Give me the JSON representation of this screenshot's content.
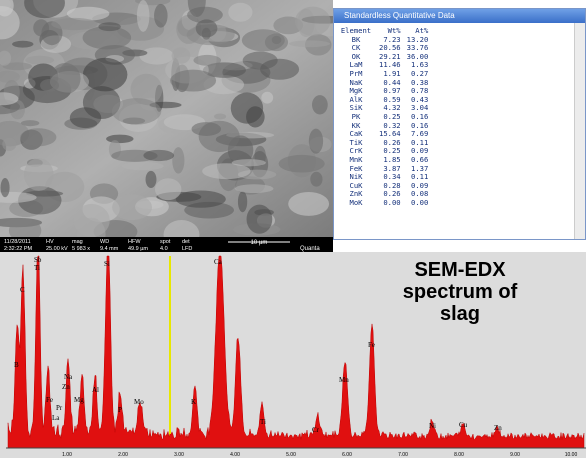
{
  "micrograph": {
    "info": [
      [
        "11/28/2011",
        "2:32:22 PM"
      ],
      [
        "HV",
        "25.00 kV"
      ],
      [
        "mag",
        "5 983 x"
      ],
      [
        "WD",
        "9.4 mm"
      ],
      [
        "HFW",
        "49.9 µm"
      ],
      [
        "spot",
        "4.0"
      ],
      [
        "det",
        "LFD"
      ]
    ],
    "scale_bar": "10 µm",
    "instrument": "Quanta"
  },
  "data_window": {
    "title": "Standardless Quantitative Data",
    "header": [
      "Element",
      "Wt%",
      "At%"
    ],
    "rows": [
      [
        "BK",
        "7.23",
        "13.20"
      ],
      [
        "CK",
        "20.56",
        "33.76"
      ],
      [
        "OK",
        "29.21",
        "36.00"
      ],
      [
        "LaM",
        "11.46",
        "1.63"
      ],
      [
        "PrM",
        "1.91",
        "0.27"
      ],
      [
        "NaK",
        "0.44",
        "0.38"
      ],
      [
        "MgK",
        "0.97",
        "0.78"
      ],
      [
        "AlK",
        "0.59",
        "0.43"
      ],
      [
        "SiK",
        "4.32",
        "3.04"
      ],
      [
        "PK",
        "0.25",
        "0.16"
      ],
      [
        "KK",
        "0.32",
        "0.16"
      ],
      [
        "CaK",
        "15.64",
        "7.69"
      ],
      [
        "TiK",
        "0.26",
        "0.11"
      ],
      [
        "CrK",
        "0.25",
        "0.09"
      ],
      [
        "MnK",
        "1.85",
        "0.66"
      ],
      [
        "FeK",
        "3.87",
        "1.37"
      ],
      [
        "NiK",
        "0.34",
        "0.11"
      ],
      [
        "CuK",
        "0.28",
        "0.09"
      ],
      [
        "ZnK",
        "0.26",
        "0.08"
      ],
      [
        "MoK",
        "0.00",
        "0.00"
      ]
    ]
  },
  "spectrum": {
    "title_lines": [
      "SEM-EDX",
      "spectrum of",
      "slag"
    ],
    "peak_labels": [
      "B",
      "C",
      "Sb",
      "Ti",
      "Na",
      "Zn",
      "Al",
      "Fe",
      "Pr",
      "La",
      "Mg",
      "Si",
      "P",
      "Mo",
      "Ca",
      "K",
      "Ti",
      "Cr",
      "Mn",
      "Fe",
      "Ni",
      "Cu",
      "Zn"
    ],
    "x_tick_labels": [
      "1.00",
      "2.00",
      "3.00",
      "4.00",
      "5.00",
      "6.00",
      "7.00",
      "8.00",
      "9.00",
      "10.00"
    ]
  }
}
